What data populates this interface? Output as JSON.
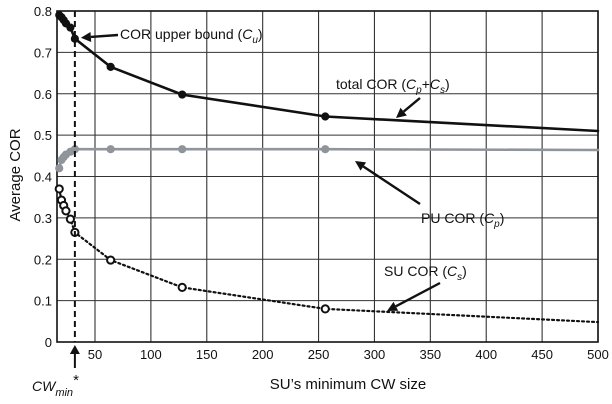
{
  "chart_data": {
    "type": "line",
    "xlabel": "SU’s minimum CW size",
    "ylabel": "Average COR",
    "xlim": [
      16,
      500
    ],
    "ylim": [
      0,
      0.8
    ],
    "xticks": [
      50,
      100,
      150,
      200,
      250,
      300,
      350,
      400,
      450,
      500
    ],
    "yticks": [
      0,
      0.1,
      0.2,
      0.3,
      0.4,
      0.5,
      0.6,
      0.7,
      0.8
    ],
    "grid": true,
    "vline": {
      "x": 32,
      "label_main": "CW",
      "label_sub": "min",
      "label_suffix": "*"
    },
    "series": [
      {
        "name": "total COR",
        "color": "#111111",
        "dash": "",
        "markers": {
          "x": [
            18,
            20,
            22,
            24,
            28,
            32,
            64,
            128,
            256
          ],
          "y": [
            0.79,
            0.785,
            0.778,
            0.77,
            0.76,
            0.733,
            0.665,
            0.598,
            0.545
          ]
        },
        "curve": {
          "x": [
            18,
            20,
            22,
            24,
            28,
            32,
            64,
            128,
            256,
            500
          ],
          "y": [
            0.79,
            0.785,
            0.778,
            0.77,
            0.76,
            0.733,
            0.665,
            0.598,
            0.545,
            0.51
          ]
        }
      },
      {
        "name": "PU COR",
        "color": "#8f959a",
        "dash": "",
        "markers": {
          "x": [
            18,
            20,
            22,
            24,
            28,
            32,
            64,
            128,
            256
          ],
          "y": [
            0.42,
            0.44,
            0.447,
            0.453,
            0.46,
            0.466,
            0.466,
            0.466,
            0.466
          ]
        },
        "curve": {
          "x": [
            18,
            20,
            22,
            24,
            28,
            32,
            64,
            128,
            256,
            500
          ],
          "y": [
            0.42,
            0.44,
            0.447,
            0.453,
            0.46,
            0.466,
            0.466,
            0.466,
            0.466,
            0.464
          ]
        }
      },
      {
        "name": "SU COR",
        "color": "#111111",
        "dash": "2,3",
        "markers": {
          "x": [
            18,
            20,
            22,
            24,
            28,
            32,
            64,
            128,
            256
          ],
          "y": [
            0.37,
            0.343,
            0.33,
            0.317,
            0.297,
            0.265,
            0.198,
            0.132,
            0.08
          ]
        },
        "curve": {
          "x": [
            18,
            20,
            22,
            24,
            28,
            32,
            64,
            128,
            256,
            500
          ],
          "y": [
            0.37,
            0.343,
            0.33,
            0.317,
            0.297,
            0.265,
            0.198,
            0.132,
            0.08,
            0.048
          ]
        }
      }
    ],
    "annotations": [
      {
        "main": "COR upper bound (",
        "sym": "C",
        "sub": "u",
        "tail": ")",
        "at_x": 32,
        "at_y": 0.733
      },
      {
        "main": "total COR (",
        "sym": "C",
        "sub": "p",
        "tail": "+",
        "sym2": "C",
        "sub2": "s",
        "tail2": ")",
        "at_x": 320,
        "at_y": 0.53
      },
      {
        "main": "PU COR (",
        "sym": "C",
        "sub": "p",
        "tail": ")",
        "at_x": 340,
        "at_y": 0.455
      },
      {
        "main": "SU COR (",
        "sym": "C",
        "sub": "s",
        "tail": ")",
        "at_x": 305,
        "at_y": 0.075
      }
    ]
  }
}
